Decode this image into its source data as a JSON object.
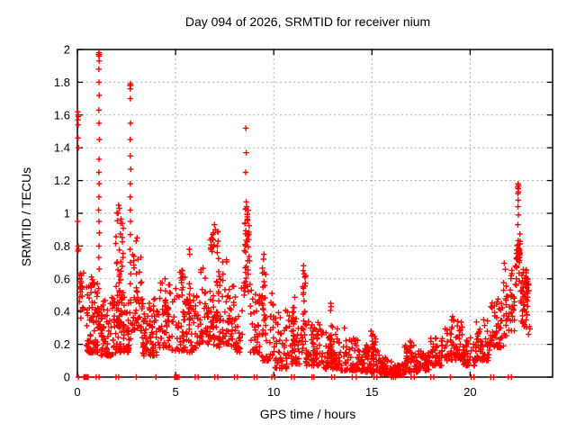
{
  "chart_data": {
    "type": "scatter",
    "title": "Day 094 of 2026, SRMTID for receiver nium",
    "xlabel": "GPS time / hours",
    "ylabel": "SRMTID / TECUs",
    "xlim": [
      0,
      24.2
    ],
    "ylim": [
      0,
      2
    ],
    "xticks": [
      0,
      5,
      10,
      15,
      20
    ],
    "yticks": [
      0,
      0.2,
      0.4,
      0.6,
      0.8,
      1,
      1.2,
      1.4,
      1.6,
      1.8,
      2
    ],
    "grid": true,
    "legend": "none",
    "marker": {
      "shape": "plus",
      "color": "#ff0000",
      "size": 7
    },
    "grid_color": "#b0b0b0",
    "axis_color": "#000000",
    "points": [
      [
        0.02,
        1.62
      ],
      [
        0.04,
        1.6
      ],
      [
        0.05,
        1.59
      ],
      [
        0.03,
        1.57
      ],
      [
        0.04,
        1.54
      ],
      [
        0.03,
        1.46
      ],
      [
        0.05,
        1.4
      ],
      [
        0.02,
        0.95
      ],
      [
        0.04,
        0.8
      ],
      [
        0.06,
        0.78
      ],
      [
        0.03,
        0.77
      ],
      [
        1.1,
        1.98
      ],
      [
        1.08,
        1.97
      ],
      [
        1.12,
        1.97
      ],
      [
        1.1,
        1.96
      ],
      [
        1.11,
        1.93
      ],
      [
        1.09,
        1.88
      ],
      [
        1.1,
        1.8
      ],
      [
        1.11,
        1.72
      ],
      [
        1.09,
        1.63
      ],
      [
        1.1,
        1.55
      ],
      [
        1.12,
        1.45
      ],
      [
        1.1,
        1.33
      ],
      [
        1.09,
        1.25
      ],
      [
        1.11,
        1.18
      ],
      [
        1.1,
        1.1
      ],
      [
        1.08,
        1.02
      ],
      [
        1.1,
        0.95
      ],
      [
        1.12,
        0.88
      ],
      [
        1.1,
        0.8
      ],
      [
        1.09,
        0.73
      ],
      [
        1.11,
        0.66
      ],
      [
        2.1,
        1.05
      ],
      [
        2.14,
        1.03
      ],
      [
        2.07,
        1.0
      ],
      [
        2.7,
        1.79
      ],
      [
        2.68,
        1.78
      ],
      [
        2.72,
        1.78
      ],
      [
        2.7,
        1.76
      ],
      [
        2.7,
        1.7
      ],
      [
        2.71,
        1.55
      ],
      [
        2.69,
        1.45
      ],
      [
        2.7,
        1.35
      ],
      [
        2.72,
        1.27
      ],
      [
        2.7,
        1.18
      ],
      [
        2.69,
        1.1
      ],
      [
        2.7,
        1.02
      ],
      [
        2.71,
        0.95
      ],
      [
        2.7,
        0.87
      ],
      [
        2.68,
        0.78
      ],
      [
        2.7,
        0.7
      ],
      [
        2.72,
        0.63
      ],
      [
        2.7,
        0.57
      ],
      [
        3.04,
        0.85
      ],
      [
        2.99,
        0.83
      ],
      [
        5.7,
        0.78
      ],
      [
        5.72,
        0.75
      ],
      [
        6.98,
        0.93
      ],
      [
        7.02,
        0.9
      ],
      [
        6.93,
        0.88
      ],
      [
        8.58,
        1.52
      ],
      [
        8.6,
        1.37
      ],
      [
        8.57,
        1.25
      ],
      [
        8.6,
        1.07
      ],
      [
        8.62,
        1.04
      ],
      [
        9.5,
        0.75
      ],
      [
        9.48,
        0.72
      ],
      [
        11.52,
        0.68
      ],
      [
        11.5,
        0.65
      ],
      [
        11.55,
        0.63
      ],
      [
        12.9,
        0.45
      ],
      [
        12.92,
        0.43
      ],
      [
        13.6,
        0.3
      ],
      [
        14.95,
        0.28
      ],
      [
        15.05,
        0.26
      ],
      [
        16.95,
        0.22
      ],
      [
        17.0,
        0.21
      ],
      [
        19.1,
        0.37
      ],
      [
        19.15,
        0.35
      ],
      [
        22.44,
        1.18
      ],
      [
        22.47,
        1.17
      ],
      [
        22.42,
        1.16
      ],
      [
        22.45,
        1.15
      ],
      [
        22.46,
        1.13
      ],
      [
        22.43,
        1.12
      ],
      [
        22.45,
        1.08
      ],
      [
        22.44,
        1.04
      ],
      [
        22.46,
        0.99
      ],
      [
        22.43,
        0.93
      ]
    ],
    "clusters_legend": "x_min,x_max,y_min,y_max,count,down_bias",
    "clusters": [
      [
        0.05,
        0.32,
        0.5,
        0.64,
        14,
        0
      ],
      [
        0.1,
        0.38,
        0.36,
        0.5,
        8,
        0
      ],
      [
        0.45,
        1.05,
        0.15,
        0.62,
        75,
        1
      ],
      [
        1.0,
        1.25,
        0.3,
        0.62,
        25,
        1
      ],
      [
        1.2,
        1.95,
        0.13,
        0.52,
        70,
        1
      ],
      [
        1.95,
        2.35,
        0.3,
        1.02,
        55,
        1
      ],
      [
        1.95,
        2.4,
        0.15,
        0.4,
        25,
        1
      ],
      [
        2.35,
        2.8,
        0.15,
        0.5,
        40,
        1
      ],
      [
        2.8,
        3.3,
        0.28,
        0.8,
        45,
        1
      ],
      [
        3.3,
        4.1,
        0.13,
        0.48,
        70,
        1
      ],
      [
        4.1,
        4.75,
        0.18,
        0.6,
        55,
        1
      ],
      [
        4.8,
        5.55,
        0.16,
        0.66,
        60,
        1
      ],
      [
        5.55,
        6.2,
        0.15,
        0.5,
        45,
        1
      ],
      [
        5.65,
        5.8,
        0.3,
        0.74,
        10,
        0
      ],
      [
        6.2,
        6.75,
        0.2,
        0.68,
        45,
        1
      ],
      [
        6.75,
        7.2,
        0.3,
        0.9,
        40,
        1
      ],
      [
        6.75,
        7.25,
        0.18,
        0.4,
        20,
        1
      ],
      [
        7.2,
        7.85,
        0.2,
        0.72,
        50,
        1
      ],
      [
        7.85,
        8.4,
        0.15,
        0.6,
        40,
        1
      ],
      [
        8.5,
        8.75,
        0.72,
        1.03,
        28,
        0
      ],
      [
        8.48,
        8.8,
        0.5,
        0.72,
        18,
        0
      ],
      [
        8.8,
        9.35,
        0.15,
        0.55,
        40,
        1
      ],
      [
        9.35,
        10.0,
        0.1,
        0.52,
        45,
        1
      ],
      [
        9.4,
        9.6,
        0.3,
        0.72,
        14,
        0
      ],
      [
        10.0,
        10.7,
        0.05,
        0.42,
        50,
        1
      ],
      [
        10.7,
        11.45,
        0.08,
        0.38,
        50,
        1
      ],
      [
        10.95,
        11.1,
        0.15,
        0.5,
        10,
        0
      ],
      [
        11.45,
        11.62,
        0.15,
        0.62,
        22,
        0
      ],
      [
        11.6,
        12.55,
        0.07,
        0.35,
        70,
        1
      ],
      [
        12.55,
        13.3,
        0.05,
        0.3,
        55,
        1
      ],
      [
        12.85,
        13.0,
        0.12,
        0.42,
        10,
        0
      ],
      [
        13.3,
        14.3,
        0.04,
        0.24,
        65,
        1
      ],
      [
        14.3,
        15.4,
        0.03,
        0.18,
        75,
        1
      ],
      [
        14.7,
        15.2,
        0.14,
        0.26,
        15,
        0
      ],
      [
        15.4,
        16.0,
        0.02,
        0.12,
        55,
        1
      ],
      [
        16.0,
        16.65,
        0.01,
        0.08,
        60,
        1
      ],
      [
        16.65,
        17.35,
        0.03,
        0.2,
        55,
        1
      ],
      [
        17.35,
        17.9,
        0.04,
        0.16,
        40,
        1
      ],
      [
        17.9,
        18.65,
        0.07,
        0.24,
        55,
        1
      ],
      [
        18.65,
        19.6,
        0.1,
        0.35,
        65,
        1
      ],
      [
        19.6,
        20.25,
        0.07,
        0.25,
        45,
        1
      ],
      [
        20.25,
        21.0,
        0.1,
        0.35,
        55,
        1
      ],
      [
        21.0,
        21.7,
        0.18,
        0.48,
        50,
        1
      ],
      [
        21.7,
        22.3,
        0.25,
        0.72,
        45,
        0
      ],
      [
        22.35,
        22.55,
        0.72,
        0.92,
        26,
        1
      ],
      [
        22.3,
        22.6,
        0.55,
        0.72,
        12,
        0
      ],
      [
        22.55,
        23.0,
        0.42,
        0.66,
        45,
        0
      ],
      [
        22.6,
        23.05,
        0.25,
        0.42,
        18,
        0
      ]
    ],
    "zero_marks": [
      0.05,
      0.33,
      0.38,
      0.42,
      0.46,
      0.5,
      0.55,
      0.96,
      1.1,
      1.97,
      2.1,
      3.0,
      4.0,
      4.95,
      5.0,
      5.05,
      5.1,
      5.18,
      6.0,
      6.15,
      7.0,
      7.15,
      8.0,
      8.15,
      9.0,
      9.15,
      9.9,
      10.05,
      10.9,
      11.05,
      11.95,
      12.05,
      12.95,
      13.1,
      14.0,
      14.2,
      15.1,
      15.25,
      16.0,
      16.1,
      16.2,
      17.0,
      17.15,
      18.0,
      18.15,
      19.0,
      20.05,
      20.2,
      21.05,
      21.2,
      21.95,
      22.1
    ]
  }
}
